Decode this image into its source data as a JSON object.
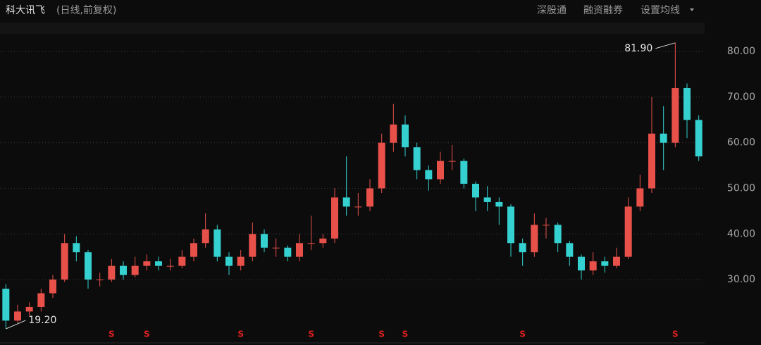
{
  "chart_data": {
    "type": "candlestick",
    "title": "科大讯飞",
    "subtitle": "(日线,前复权)",
    "toolbar": [
      "深股通",
      "融资融券",
      "设置均线"
    ],
    "up_color": "#e8504a",
    "down_color": "#35d0d0",
    "grid": true,
    "ylim": [
      17.2,
      82.8
    ],
    "yticks": [
      {
        "value": 30,
        "label": "30.00"
      },
      {
        "value": 40,
        "label": "40.00"
      },
      {
        "value": 50,
        "label": "50.00"
      },
      {
        "value": 60,
        "label": "60.00"
      },
      {
        "value": 70,
        "label": "70.00"
      },
      {
        "value": 80,
        "label": "80.00"
      }
    ],
    "open": [
      28,
      21,
      23,
      24,
      27,
      30,
      38,
      36,
      30,
      30,
      33,
      31,
      33,
      34,
      33,
      33,
      35,
      38,
      41,
      35,
      33,
      35,
      40,
      37,
      37,
      35,
      38,
      38,
      39,
      48,
      46,
      46,
      50,
      60,
      64,
      59,
      54,
      52,
      56,
      56,
      51,
      48,
      47,
      46,
      38,
      36,
      42,
      42,
      38,
      35,
      32,
      34,
      33,
      35,
      46,
      50,
      62,
      60,
      72,
      65
    ],
    "high": [
      29,
      24.5,
      25,
      28,
      31,
      40,
      39.5,
      36.5,
      31.5,
      34.5,
      34,
      35,
      35.5,
      35,
      34.5,
      36.5,
      39,
      44.5,
      42,
      36,
      36.5,
      42.5,
      41,
      39,
      37.5,
      40,
      44,
      40,
      50,
      57,
      49,
      52,
      62,
      68.5,
      66,
      60,
      55,
      58,
      59.5,
      56.5,
      51.5,
      50.5,
      48,
      46.5,
      39,
      44.5,
      43.5,
      42.5,
      38.5,
      35.5,
      36,
      35,
      37,
      48,
      53,
      70,
      68,
      81.9,
      73,
      66
    ],
    "low": [
      19.2,
      20.5,
      22,
      23,
      26,
      29.5,
      34,
      28,
      28.5,
      29.5,
      30,
      30.5,
      32,
      32,
      32,
      32.5,
      34,
      37,
      34,
      31,
      32,
      34,
      36,
      35,
      34,
      34,
      36.5,
      37,
      38,
      44,
      44,
      45,
      49,
      58,
      57,
      52,
      49.5,
      51,
      54,
      50,
      45,
      45,
      42,
      35,
      33,
      35,
      39,
      36,
      33,
      30,
      31,
      31.5,
      32.5,
      34.5,
      45,
      49,
      54,
      59,
      61,
      56
    ],
    "close": [
      21,
      23,
      24,
      27,
      30,
      38,
      36,
      30,
      30,
      33,
      31,
      33,
      34,
      33,
      33,
      35,
      38,
      41,
      35,
      33,
      35,
      40,
      37,
      37,
      35,
      38,
      38,
      39,
      48,
      46,
      46,
      50,
      60,
      64,
      59,
      54,
      52,
      56,
      56,
      51,
      48,
      47,
      46,
      38,
      36,
      42,
      42,
      38,
      35,
      32,
      34,
      33,
      35,
      46,
      50,
      62,
      60,
      72,
      65,
      57
    ],
    "extremes": [
      {
        "value": 81.9,
        "label": "81.90",
        "index": 57
      },
      {
        "value": 19.2,
        "label": "19.20",
        "index": 0
      }
    ],
    "signal_label": "S",
    "signals": [
      9,
      12,
      20,
      26,
      32,
      34,
      44,
      57
    ]
  }
}
